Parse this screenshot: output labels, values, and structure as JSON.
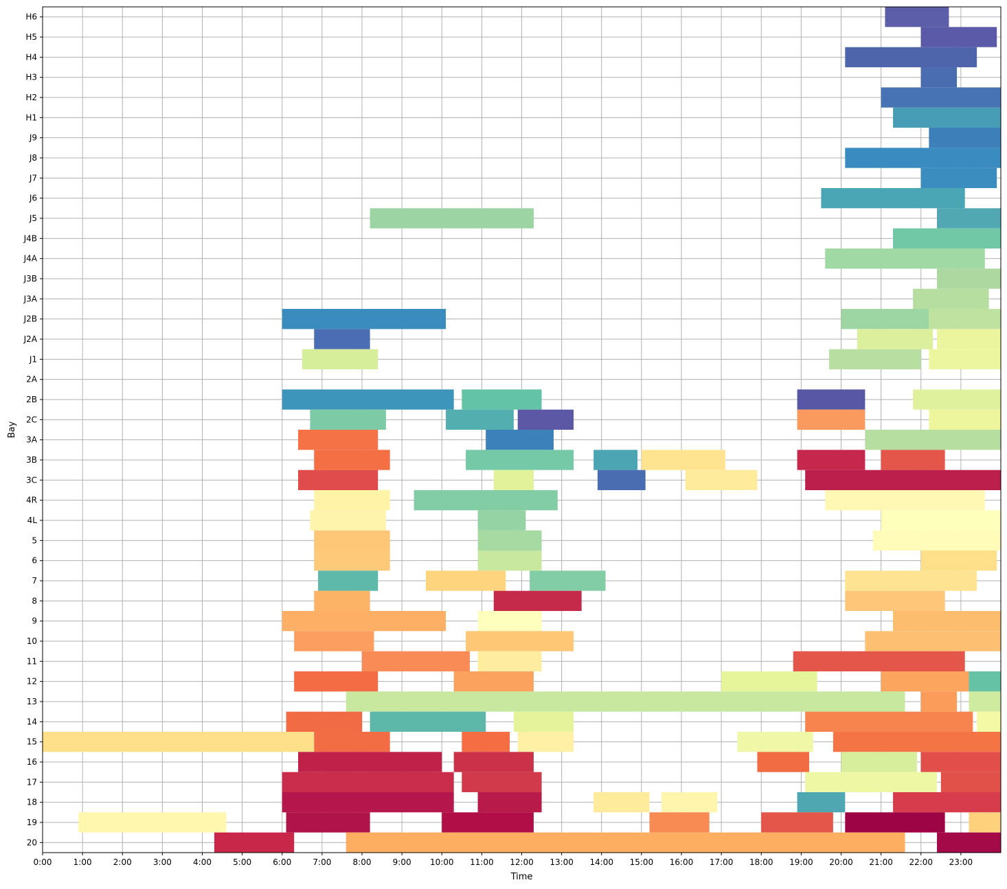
{
  "chart_data": {
    "type": "gantt",
    "title": "",
    "xlabel": "Time",
    "ylabel": "Bay",
    "xlim": [
      0,
      24
    ],
    "grid": true,
    "x_ticks": [
      "0:00",
      "1:00",
      "2:00",
      "3:00",
      "4:00",
      "5:00",
      "6:00",
      "7:00",
      "8:00",
      "9:00",
      "10:00",
      "11:00",
      "12:00",
      "13:00",
      "14:00",
      "15:00",
      "16:00",
      "17:00",
      "18:00",
      "19:00",
      "20:00",
      "21:00",
      "22:00",
      "23:00"
    ],
    "bays": [
      "H6",
      "H5",
      "H4",
      "H3",
      "H2",
      "H1",
      "J9",
      "J8",
      "J7",
      "J6",
      "J5",
      "J4B",
      "J4A",
      "J3B",
      "J3A",
      "J2B",
      "J2A",
      "J1",
      "2A",
      "2B",
      "2C",
      "3A",
      "3B",
      "3C",
      "4R",
      "4L",
      "5",
      "6",
      "7",
      "8",
      "9",
      "10",
      "11",
      "12",
      "13",
      "14",
      "15",
      "16",
      "17",
      "18",
      "19",
      "20"
    ],
    "bars": [
      {
        "bay": "H6",
        "start": 21.1,
        "end": 22.7,
        "color": "#5c5ea9"
      },
      {
        "bay": "H5",
        "start": 22.0,
        "end": 23.9,
        "color": "#5a5aa8"
      },
      {
        "bay": "H4",
        "start": 20.1,
        "end": 23.4,
        "color": "#4f65ab"
      },
      {
        "bay": "H3",
        "start": 22.0,
        "end": 22.9,
        "color": "#4a6cb0"
      },
      {
        "bay": "H2",
        "start": 21.0,
        "end": 24.0,
        "color": "#4772b3"
      },
      {
        "bay": "H1",
        "start": 21.3,
        "end": 24.0,
        "color": "#479db5"
      },
      {
        "bay": "J9",
        "start": 22.2,
        "end": 24.0,
        "color": "#3d7fb8"
      },
      {
        "bay": "J8",
        "start": 20.1,
        "end": 24.0,
        "color": "#3a8bc0"
      },
      {
        "bay": "J7",
        "start": 22.0,
        "end": 23.9,
        "color": "#3a8dbe"
      },
      {
        "bay": "J6",
        "start": 19.5,
        "end": 23.1,
        "color": "#4aa5b5"
      },
      {
        "bay": "J5",
        "start": 8.2,
        "end": 12.3,
        "color": "#9dd4a4"
      },
      {
        "bay": "J5",
        "start": 22.4,
        "end": 24.0,
        "color": "#52a8b2"
      },
      {
        "bay": "J4B",
        "start": 21.3,
        "end": 24.0,
        "color": "#70c8a6"
      },
      {
        "bay": "J4A",
        "start": 19.6,
        "end": 23.6,
        "color": "#a0d9a4"
      },
      {
        "bay": "J3B",
        "start": 22.4,
        "end": 24.0,
        "color": "#add8a0"
      },
      {
        "bay": "J3A",
        "start": 21.8,
        "end": 23.7,
        "color": "#b5dea0"
      },
      {
        "bay": "J2B",
        "start": 6.0,
        "end": 10.1,
        "color": "#3a8bbe"
      },
      {
        "bay": "J2B",
        "start": 20.0,
        "end": 22.2,
        "color": "#9dd6a3"
      },
      {
        "bay": "J2B",
        "start": 22.2,
        "end": 24.0,
        "color": "#bfe2a0"
      },
      {
        "bay": "J2A",
        "start": 6.8,
        "end": 8.2,
        "color": "#4a6db3"
      },
      {
        "bay": "J2A",
        "start": 20.4,
        "end": 22.3,
        "color": "#dcef9c"
      },
      {
        "bay": "J2A",
        "start": 22.4,
        "end": 24.0,
        "color": "#ebf59d"
      },
      {
        "bay": "J1",
        "start": 6.5,
        "end": 8.4,
        "color": "#d6ee9a"
      },
      {
        "bay": "J1",
        "start": 19.7,
        "end": 22.0,
        "color": "#b8dfa1"
      },
      {
        "bay": "J1",
        "start": 22.2,
        "end": 24.0,
        "color": "#ecf69e"
      },
      {
        "bay": "2B",
        "start": 6.0,
        "end": 10.3,
        "color": "#3d95bb"
      },
      {
        "bay": "2B",
        "start": 10.5,
        "end": 12.5,
        "color": "#63c3a6"
      },
      {
        "bay": "2B",
        "start": 18.9,
        "end": 20.6,
        "color": "#5757a6"
      },
      {
        "bay": "2B",
        "start": 21.8,
        "end": 24.0,
        "color": "#dff19d"
      },
      {
        "bay": "2C",
        "start": 6.7,
        "end": 8.6,
        "color": "#7ccaa6"
      },
      {
        "bay": "2C",
        "start": 10.1,
        "end": 11.8,
        "color": "#52aeaf"
      },
      {
        "bay": "2C",
        "start": 11.9,
        "end": 13.3,
        "color": "#5d58a6"
      },
      {
        "bay": "2C",
        "start": 18.9,
        "end": 20.6,
        "color": "#fb9a5f"
      },
      {
        "bay": "2C",
        "start": 22.2,
        "end": 24.0,
        "color": "#eef69d"
      },
      {
        "bay": "3A",
        "start": 6.4,
        "end": 8.4,
        "color": "#f47245"
      },
      {
        "bay": "3A",
        "start": 11.1,
        "end": 12.8,
        "color": "#3c81b9"
      },
      {
        "bay": "3A",
        "start": 20.6,
        "end": 24.0,
        "color": "#b6dea0"
      },
      {
        "bay": "3B",
        "start": 6.8,
        "end": 8.7,
        "color": "#f46f44"
      },
      {
        "bay": "3B",
        "start": 10.6,
        "end": 13.3,
        "color": "#75c9a6"
      },
      {
        "bay": "3B",
        "start": 13.8,
        "end": 14.9,
        "color": "#4ba5b3"
      },
      {
        "bay": "3B",
        "start": 15.0,
        "end": 17.1,
        "color": "#fee491"
      },
      {
        "bay": "3B",
        "start": 18.9,
        "end": 20.6,
        "color": "#c6284d"
      },
      {
        "bay": "3B",
        "start": 21.0,
        "end": 22.6,
        "color": "#e4554a"
      },
      {
        "bay": "3C",
        "start": 6.4,
        "end": 8.4,
        "color": "#df4c4b"
      },
      {
        "bay": "3C",
        "start": 11.3,
        "end": 12.3,
        "color": "#e1f29b"
      },
      {
        "bay": "3C",
        "start": 13.9,
        "end": 15.1,
        "color": "#4a6cb0"
      },
      {
        "bay": "3C",
        "start": 16.1,
        "end": 17.9,
        "color": "#feeb9c"
      },
      {
        "bay": "3C",
        "start": 19.1,
        "end": 24.0,
        "color": "#bc1f4b"
      },
      {
        "bay": "4R",
        "start": 6.8,
        "end": 8.7,
        "color": "#fff3a7"
      },
      {
        "bay": "4R",
        "start": 9.3,
        "end": 12.9,
        "color": "#82cda5"
      },
      {
        "bay": "4R",
        "start": 19.6,
        "end": 23.6,
        "color": "#fff8b4"
      },
      {
        "bay": "4L",
        "start": 6.7,
        "end": 8.6,
        "color": "#fff4ab"
      },
      {
        "bay": "4L",
        "start": 10.9,
        "end": 12.1,
        "color": "#95d3a4"
      },
      {
        "bay": "4L",
        "start": 21.0,
        "end": 24.0,
        "color": "#ffffbc"
      },
      {
        "bay": "5",
        "start": 6.8,
        "end": 8.7,
        "color": "#fec777"
      },
      {
        "bay": "5",
        "start": 10.9,
        "end": 12.5,
        "color": "#a7d9a3"
      },
      {
        "bay": "5",
        "start": 20.8,
        "end": 24.0,
        "color": "#fffcba"
      },
      {
        "bay": "6",
        "start": 6.8,
        "end": 8.7,
        "color": "#fec979"
      },
      {
        "bay": "6",
        "start": 10.9,
        "end": 12.5,
        "color": "#c9e89f"
      },
      {
        "bay": "6",
        "start": 22.0,
        "end": 23.9,
        "color": "#fee08b"
      },
      {
        "bay": "7",
        "start": 6.9,
        "end": 8.4,
        "color": "#5fb9aa"
      },
      {
        "bay": "7",
        "start": 9.6,
        "end": 11.6,
        "color": "#fed47f"
      },
      {
        "bay": "7",
        "start": 12.2,
        "end": 14.1,
        "color": "#82cca6"
      },
      {
        "bay": "7",
        "start": 20.1,
        "end": 23.4,
        "color": "#fee392"
      },
      {
        "bay": "8",
        "start": 6.8,
        "end": 8.2,
        "color": "#fdb366"
      },
      {
        "bay": "8",
        "start": 11.3,
        "end": 13.5,
        "color": "#c52a4a"
      },
      {
        "bay": "8",
        "start": 20.1,
        "end": 22.6,
        "color": "#fdc679"
      },
      {
        "bay": "9",
        "start": 6.0,
        "end": 10.1,
        "color": "#fdb065"
      },
      {
        "bay": "9",
        "start": 10.9,
        "end": 12.5,
        "color": "#ffffbd"
      },
      {
        "bay": "9",
        "start": 21.3,
        "end": 24.0,
        "color": "#fdbd6f"
      },
      {
        "bay": "10",
        "start": 6.3,
        "end": 8.3,
        "color": "#fc9e5f"
      },
      {
        "bay": "10",
        "start": 10.6,
        "end": 13.3,
        "color": "#fec776"
      },
      {
        "bay": "10",
        "start": 20.6,
        "end": 24.0,
        "color": "#fdbf71"
      },
      {
        "bay": "11",
        "start": 8.0,
        "end": 10.7,
        "color": "#f98b56"
      },
      {
        "bay": "11",
        "start": 10.9,
        "end": 12.5,
        "color": "#feeda0"
      },
      {
        "bay": "11",
        "start": 18.8,
        "end": 23.1,
        "color": "#e4564a"
      },
      {
        "bay": "12",
        "start": 6.3,
        "end": 8.4,
        "color": "#f46c43"
      },
      {
        "bay": "12",
        "start": 10.3,
        "end": 12.3,
        "color": "#fca25f"
      },
      {
        "bay": "12",
        "start": 17.0,
        "end": 19.4,
        "color": "#e6f59a"
      },
      {
        "bay": "12",
        "start": 21.0,
        "end": 23.2,
        "color": "#fca55f"
      },
      {
        "bay": "12",
        "start": 23.2,
        "end": 24.0,
        "color": "#66c2a5"
      },
      {
        "bay": "13",
        "start": 7.6,
        "end": 21.6,
        "color": "#c8e8a0"
      },
      {
        "bay": "13",
        "start": 22.0,
        "end": 22.9,
        "color": "#fb9c5a"
      },
      {
        "bay": "13",
        "start": 23.2,
        "end": 24.0,
        "color": "#cfeb9f"
      },
      {
        "bay": "14",
        "start": 6.1,
        "end": 8.0,
        "color": "#f16b44"
      },
      {
        "bay": "14",
        "start": 8.2,
        "end": 11.1,
        "color": "#5eb8aa"
      },
      {
        "bay": "14",
        "start": 11.8,
        "end": 13.3,
        "color": "#e5f49b"
      },
      {
        "bay": "14",
        "start": 19.1,
        "end": 23.3,
        "color": "#f7844e"
      },
      {
        "bay": "14",
        "start": 23.4,
        "end": 24.0,
        "color": "#f3f9a4"
      },
      {
        "bay": "15",
        "start": 0.0,
        "end": 6.8,
        "color": "#fee08b"
      },
      {
        "bay": "15",
        "start": 6.8,
        "end": 8.7,
        "color": "#f36d44"
      },
      {
        "bay": "15",
        "start": 10.5,
        "end": 11.7,
        "color": "#f46d43"
      },
      {
        "bay": "15",
        "start": 11.9,
        "end": 13.3,
        "color": "#fff0a6"
      },
      {
        "bay": "15",
        "start": 17.4,
        "end": 19.3,
        "color": "#f0f8a8"
      },
      {
        "bay": "15",
        "start": 19.8,
        "end": 24.0,
        "color": "#f57446"
      },
      {
        "bay": "16",
        "start": 6.4,
        "end": 10.0,
        "color": "#bf2149"
      },
      {
        "bay": "16",
        "start": 10.3,
        "end": 12.3,
        "color": "#cb3149"
      },
      {
        "bay": "16",
        "start": 17.9,
        "end": 19.2,
        "color": "#f16b43"
      },
      {
        "bay": "16",
        "start": 20.0,
        "end": 21.9,
        "color": "#d7ef9c"
      },
      {
        "bay": "16",
        "start": 22.0,
        "end": 24.0,
        "color": "#e24f4a"
      },
      {
        "bay": "17",
        "start": 6.0,
        "end": 10.3,
        "color": "#c92d4b"
      },
      {
        "bay": "17",
        "start": 10.5,
        "end": 12.5,
        "color": "#d13a4b"
      },
      {
        "bay": "17",
        "start": 19.1,
        "end": 22.4,
        "color": "#eef7a3"
      },
      {
        "bay": "17",
        "start": 22.5,
        "end": 24.0,
        "color": "#e2504a"
      },
      {
        "bay": "18",
        "start": 6.0,
        "end": 10.3,
        "color": "#b5164b"
      },
      {
        "bay": "18",
        "start": 10.9,
        "end": 12.5,
        "color": "#b81a4a"
      },
      {
        "bay": "18",
        "start": 13.8,
        "end": 15.2,
        "color": "#feeb9b"
      },
      {
        "bay": "18",
        "start": 15.5,
        "end": 16.9,
        "color": "#fff5ad"
      },
      {
        "bay": "18",
        "start": 18.9,
        "end": 20.1,
        "color": "#4fa8b1"
      },
      {
        "bay": "18",
        "start": 21.3,
        "end": 24.0,
        "color": "#d73c4c"
      },
      {
        "bay": "19",
        "start": 0.9,
        "end": 4.6,
        "color": "#fff7ad"
      },
      {
        "bay": "19",
        "start": 6.1,
        "end": 8.2,
        "color": "#b0124a"
      },
      {
        "bay": "19",
        "start": 10.0,
        "end": 12.3,
        "color": "#b10e48"
      },
      {
        "bay": "19",
        "start": 15.2,
        "end": 16.7,
        "color": "#f88b53"
      },
      {
        "bay": "19",
        "start": 18.0,
        "end": 19.8,
        "color": "#e4564a"
      },
      {
        "bay": "19",
        "start": 20.1,
        "end": 22.6,
        "color": "#9d0445"
      },
      {
        "bay": "19",
        "start": 23.2,
        "end": 24.0,
        "color": "#fed27d"
      },
      {
        "bay": "20",
        "start": 4.3,
        "end": 6.3,
        "color": "#c82749"
      },
      {
        "bay": "20",
        "start": 7.6,
        "end": 21.6,
        "color": "#fdae61"
      },
      {
        "bay": "20",
        "start": 22.4,
        "end": 24.0,
        "color": "#a30a47"
      }
    ]
  }
}
